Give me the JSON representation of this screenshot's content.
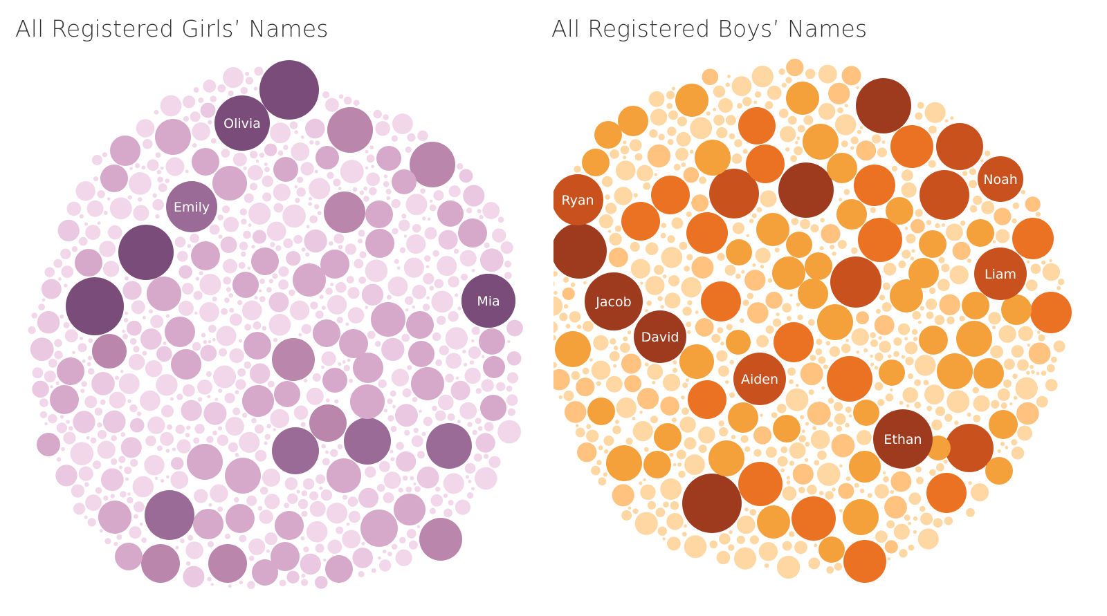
{
  "charts": [
    {
      "title": "All Registered Girls’ Names",
      "chart_data": {
        "type": "packed-bubble",
        "title": "All Registered Girls’ Names",
        "palette": [
          "#f2d6ea",
          "#ebc8e2",
          "#d6a8ca",
          "#bb86ab",
          "#9b6b98",
          "#7a4c7a"
        ],
        "labeled": [
          {
            "name": "Olivia",
            "level": 5
          },
          {
            "name": "Emily",
            "level": 4
          },
          {
            "name": "Mia",
            "level": 5
          }
        ]
      }
    },
    {
      "title": "All Registered Boys’ Names",
      "chart_data": {
        "type": "packed-bubble",
        "title": "All Registered Boys’ Names",
        "palette": [
          "#ffd7a3",
          "#ffc27f",
          "#f4a13b",
          "#eb7223",
          "#c9511e",
          "#9e3a1e"
        ],
        "labeled": [
          {
            "name": "Ryan",
            "level": 4
          },
          {
            "name": "Noah",
            "level": 4
          },
          {
            "name": "Jacob",
            "level": 5
          },
          {
            "name": "Liam",
            "level": 4
          },
          {
            "name": "David",
            "level": 5
          },
          {
            "name": "Aiden",
            "level": 4
          },
          {
            "name": "Ethan",
            "level": 5
          }
        ]
      }
    }
  ]
}
